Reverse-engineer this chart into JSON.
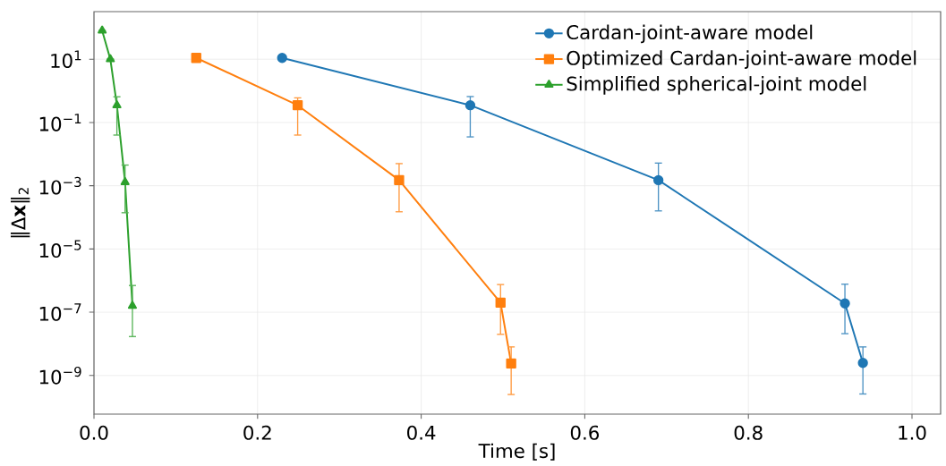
{
  "chart_data": {
    "type": "line",
    "xlabel": "Time [s]",
    "ylabel": "‖Δ**x**‖$_{2}$",
    "log": "y",
    "grid": true,
    "legend": "top right",
    "line_style": "solid",
    "xlim": [
      0,
      1.035
    ],
    "xticks": [
      {
        "value": 0,
        "label": "0.0"
      },
      0.2,
      0.4,
      0.6,
      0.8,
      {
        "value": 1,
        "label": "1.0"
      }
    ],
    "ylim": [
      6e-11,
      320
    ],
    "yticks": [
      {
        "value": 10,
        "label": "10$^{1}$"
      },
      {
        "value": 0.1,
        "label": "10$^{−1}$"
      },
      {
        "value": 0.001,
        "label": "10$^{−3}$"
      },
      {
        "value": 1e-05,
        "label": "10$^{−5}$"
      },
      {
        "value": 1e-07,
        "label": "10$^{−7}$"
      },
      {
        "value": 1e-09,
        "label": "10$^{−9}$"
      }
    ],
    "series": [
      {
        "name": "Cardan-joint-aware model",
        "color": "#1f77b4",
        "marker": "circle",
        "x": [
          0.23,
          0.46,
          0.69,
          0.918,
          0.94
        ],
        "values": [
          11,
          0.35,
          0.0015,
          1.9e-07,
          2.5e-09
        ],
        "errors": [
          null,
          [
            0.035,
            0.66
          ],
          [
            0.00016,
            0.0052
          ],
          [
            2.1e-08,
            7.7e-07
          ],
          [
            2.6e-10,
            8e-09
          ]
        ]
      },
      {
        "name": "Optimized Cardan-joint-aware model",
        "color": "#ff7f0e",
        "marker": "square",
        "x": [
          0.125,
          0.249,
          0.373,
          0.497,
          0.51
        ],
        "values": [
          11,
          0.35,
          0.0015,
          2e-07,
          2.4e-09
        ],
        "errors": [
          null,
          [
            0.04,
            0.6
          ],
          [
            0.00015,
            0.005
          ],
          [
            2e-08,
            7.5e-07
          ],
          [
            2.5e-10,
            8e-09
          ]
        ]
      },
      {
        "name": "Simplified spherical-joint model",
        "color": "#2ca02c",
        "marker": "triangle",
        "x": [
          0.01,
          0.02,
          0.028,
          0.038,
          0.047
        ],
        "values": [
          80,
          10,
          0.35,
          0.0013,
          1.6e-07
        ],
        "errors": [
          null,
          null,
          [
            0.04,
            0.65
          ],
          [
            0.00014,
            0.0045
          ],
          [
            1.7e-08,
            7e-07
          ]
        ]
      }
    ]
  }
}
